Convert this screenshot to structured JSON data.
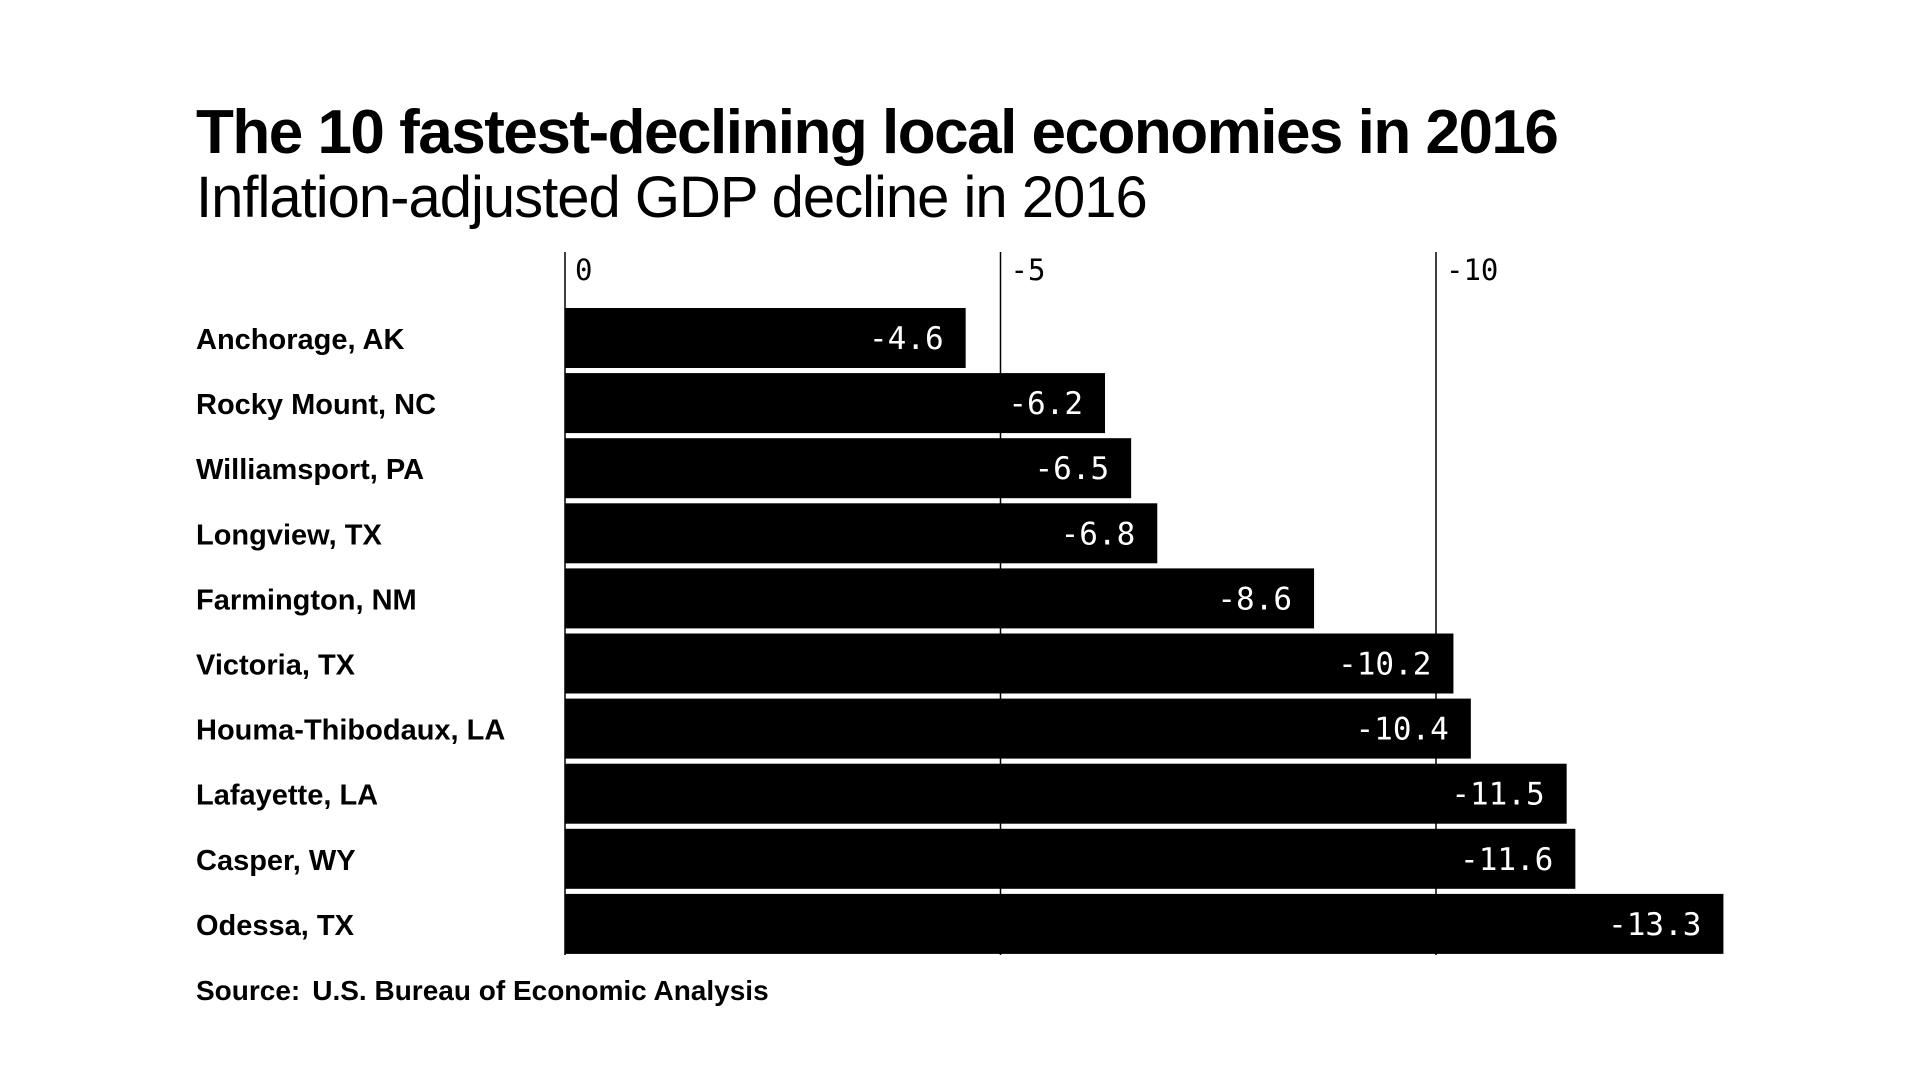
{
  "chart_data": {
    "type": "bar",
    "orientation": "horizontal",
    "title": "The 10 fastest-declining local economies in 2016",
    "subtitle": "Inflation-adjusted GDP decline in 2016",
    "source_label": "Source:",
    "source_text": "U.S. Bureau of Economic Analysis",
    "categories": [
      "Anchorage, AK",
      "Rocky Mount, NC",
      "Williamsport, PA",
      "Longview, TX",
      "Farmington, NM",
      "Victoria, TX",
      "Houma-Thibodaux, LA",
      "Lafayette, LA",
      "Casper, WY",
      "Odessa, TX"
    ],
    "values": [
      -4.6,
      -6.2,
      -6.5,
      -6.8,
      -8.6,
      -10.2,
      -10.4,
      -11.5,
      -11.6,
      -13.3
    ],
    "value_labels": [
      "-4.6",
      "-6.2",
      "-6.5",
      "-6.8",
      "-8.6",
      "-10.2",
      "-10.4",
      "-11.5",
      "-11.6",
      "-13.3"
    ],
    "ticks": [
      0,
      -5,
      -10
    ],
    "tick_labels": [
      "0",
      "-5",
      "-10"
    ],
    "axis_range": [
      0,
      -13.3
    ],
    "axis_position": "top",
    "grid": true,
    "bar_color": "#000000",
    "value_label_color": "#ffffff",
    "background_color": "#ffffff"
  }
}
